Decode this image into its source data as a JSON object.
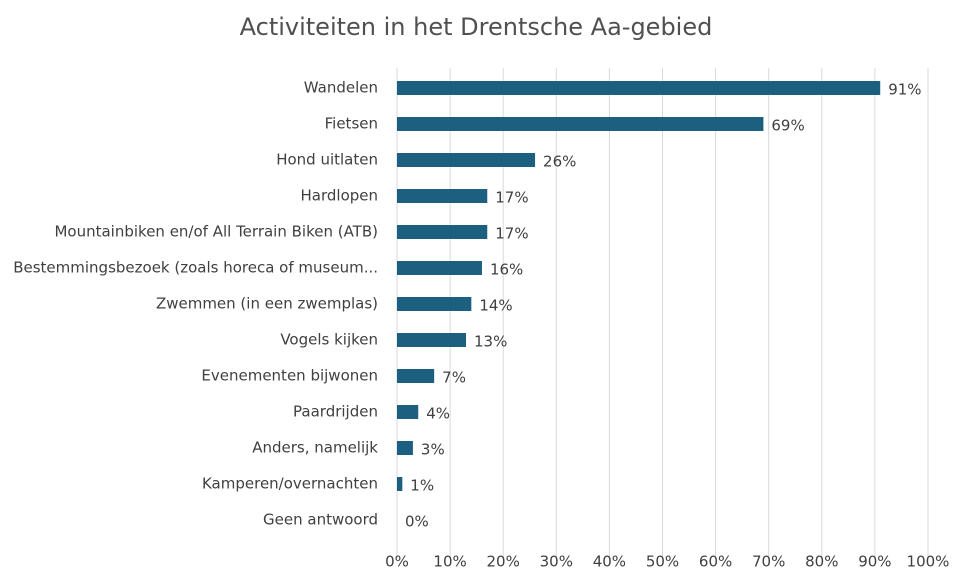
{
  "chart_data": {
    "type": "bar",
    "orientation": "horizontal",
    "title": "Activiteiten in het Drentsche Aa-gebied",
    "categories": [
      "Wandelen",
      "Fietsen",
      "Hond uitlaten",
      "Hardlopen",
      "Mountainbiken en/of All Terrain Biken (ATB)",
      "Bestemmingsbezoek (zoals horeca of museum...",
      "Zwemmen (in een zwemplas)",
      "Vogels kijken",
      "Evenementen bijwonen",
      "Paardrijden",
      "Anders, namelijk",
      "Kamperen/overnachten",
      "Geen antwoord"
    ],
    "values": [
      91,
      69,
      26,
      17,
      17,
      16,
      14,
      13,
      7,
      4,
      3,
      1,
      0
    ],
    "value_labels": [
      "91%",
      "69%",
      "26%",
      "17%",
      "17%",
      "16%",
      "14%",
      "13%",
      "7%",
      "4%",
      "3%",
      "1%",
      "0%"
    ],
    "color": "#1c5f7f",
    "xlim": [
      0,
      100
    ],
    "xticks": [
      {
        "value": 0,
        "label": "0%"
      },
      {
        "value": 10,
        "label": "10%"
      },
      {
        "value": 20,
        "label": "20%"
      },
      {
        "value": 30,
        "label": "30%"
      },
      {
        "value": 40,
        "label": "40%"
      },
      {
        "value": 50,
        "label": "50%"
      },
      {
        "value": 60,
        "label": "60%"
      },
      {
        "value": 70,
        "label": "70%"
      },
      {
        "value": 80,
        "label": "80%"
      },
      {
        "value": 90,
        "label": "90%"
      },
      {
        "value": 100,
        "label": "100%"
      }
    ],
    "grid": true
  }
}
